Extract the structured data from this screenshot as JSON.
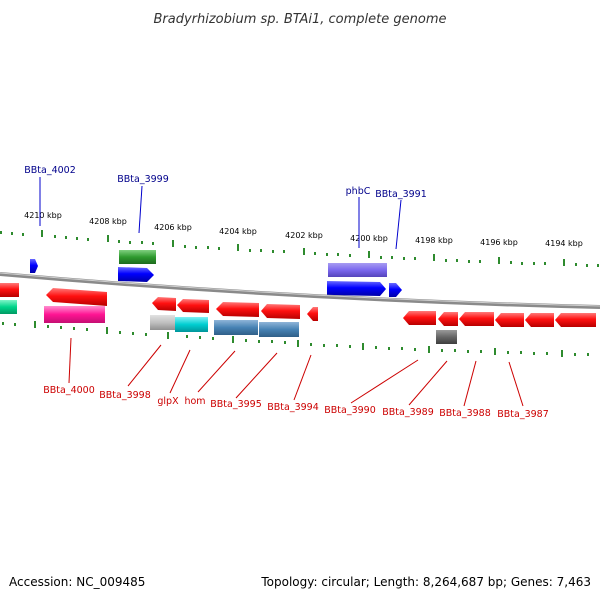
{
  "title": "Bradyrhizobium sp. BTAi1, complete genome",
  "accession": "Accession: NC_009485",
  "summary": "Topology: circular; Length: 8,264,687 bp; Genes: 7,463",
  "scale": {
    "labels": [
      "4210 kbp",
      "4208 kbp",
      "4206 kbp",
      "4204 kbp",
      "4202 kbp",
      "4200 kbp",
      "4198 kbp",
      "4196 kbp",
      "4194 kbp"
    ]
  },
  "top_labels": [
    {
      "text": "BBta_4002",
      "color": "#00008b"
    },
    {
      "text": "BBta_3999",
      "color": "#00008b"
    },
    {
      "text": "phbC",
      "color": "#00008b"
    },
    {
      "text": "BBta_3991",
      "color": "#00008b"
    }
  ],
  "bottom_labels": [
    {
      "text": "BBta_4000",
      "color": "#cc0000"
    },
    {
      "text": "BBta_3998",
      "color": "#cc0000"
    },
    {
      "text": "glpX",
      "color": "#cc0000"
    },
    {
      "text": "hom",
      "color": "#cc0000"
    },
    {
      "text": "BBta_3995",
      "color": "#cc0000"
    },
    {
      "text": "BBta_3994",
      "color": "#cc0000"
    },
    {
      "text": "BBta_3990",
      "color": "#cc0000"
    },
    {
      "text": "BBta_3989",
      "color": "#cc0000"
    },
    {
      "text": "BBta_3988",
      "color": "#cc0000"
    },
    {
      "text": "BBta_3987",
      "color": "#cc0000"
    }
  ],
  "colors": {
    "backbone": "#888888",
    "tick": "#2e8b2e",
    "forward_gene": "#0000ee",
    "reverse_gene": "#ee0000"
  }
}
